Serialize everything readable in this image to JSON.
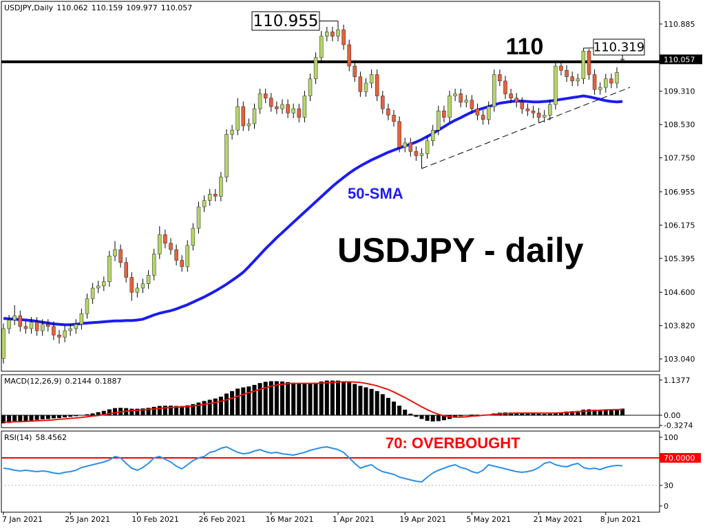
{
  "chart_data": [
    {
      "type": "candlestick",
      "title": "USDJPY,Daily",
      "annotation": "USDJPY - daily",
      "up_color": "#b5d56a",
      "down_color": "#e8603c",
      "categories": [
        "7 Jan 2021",
        null,
        null,
        null,
        null,
        null,
        null,
        null,
        null,
        null,
        null,
        null,
        "25 Jan 2021",
        null,
        null,
        null,
        null,
        null,
        null,
        null,
        null,
        null,
        null,
        null,
        "10 Feb 2021",
        null,
        null,
        null,
        null,
        null,
        null,
        null,
        null,
        null,
        null,
        null,
        "26 Feb 2021",
        null,
        null,
        null,
        null,
        null,
        null,
        null,
        null,
        null,
        null,
        null,
        "16 Mar 2021",
        null,
        null,
        null,
        null,
        null,
        null,
        null,
        null,
        null,
        null,
        null,
        "1 Apr 2021",
        null,
        null,
        null,
        null,
        null,
        null,
        null,
        null,
        null,
        null,
        null,
        "19 Apr 2021",
        null,
        null,
        null,
        null,
        null,
        null,
        null,
        null,
        null,
        null,
        null,
        "5 May 2021",
        null,
        null,
        null,
        null,
        null,
        null,
        null,
        null,
        null,
        null,
        null,
        "21 May 2021",
        null,
        null,
        null,
        null,
        null,
        null,
        null,
        null,
        null,
        null,
        null,
        "8 Jun 2021",
        null,
        null,
        null
      ],
      "open": [
        103.05,
        103.75,
        103.95,
        104.05,
        103.8,
        103.75,
        103.9,
        103.7,
        103.85,
        103.8,
        103.6,
        103.55,
        103.7,
        103.75,
        103.85,
        104.1,
        104.45,
        104.7,
        104.75,
        104.85,
        105.45,
        105.6,
        105.3,
        104.95,
        104.6,
        104.7,
        104.8,
        105.0,
        105.5,
        105.95,
        105.75,
        105.6,
        105.35,
        105.2,
        105.7,
        106.1,
        106.6,
        106.75,
        106.9,
        106.85,
        107.3,
        108.3,
        108.4,
        108.95,
        108.5,
        108.55,
        108.9,
        109.25,
        109.15,
        108.95,
        108.9,
        109.0,
        108.8,
        108.9,
        108.7,
        109.2,
        109.6,
        110.1,
        110.6,
        110.7,
        110.6,
        110.75,
        110.4,
        109.9,
        109.65,
        109.3,
        109.5,
        109.7,
        109.2,
        108.9,
        108.75,
        108.6,
        108.0,
        108.1,
        107.9,
        107.8,
        107.85,
        108.15,
        108.4,
        108.85,
        108.7,
        109.2,
        109.25,
        109.05,
        109.1,
        108.9,
        108.75,
        108.65,
        108.95,
        109.7,
        109.55,
        109.25,
        109.15,
        109.05,
        108.9,
        108.85,
        108.8,
        108.7,
        108.75,
        109.0,
        109.9,
        109.8,
        109.65,
        109.55,
        109.6,
        110.25,
        109.7,
        109.35,
        109.4,
        109.6,
        109.5,
        110.062
      ],
      "high": [
        103.87,
        104.07,
        104.3,
        104.17,
        103.92,
        104.02,
        104.02,
        103.97,
        103.97,
        103.92,
        103.72,
        103.82,
        103.87,
        103.97,
        104.22,
        104.57,
        104.82,
        104.87,
        104.97,
        105.57,
        105.8,
        105.72,
        105.42,
        105.07,
        104.82,
        104.92,
        105.12,
        105.62,
        106.15,
        106.07,
        105.87,
        105.72,
        105.47,
        105.82,
        106.22,
        106.72,
        106.87,
        107.02,
        107.02,
        107.42,
        108.42,
        108.52,
        109.15,
        109.07,
        108.67,
        109.02,
        109.37,
        109.37,
        109.27,
        109.07,
        109.12,
        109.12,
        109.02,
        109.02,
        109.32,
        109.72,
        110.22,
        110.72,
        110.82,
        110.82,
        110.955,
        110.87,
        110.52,
        110.02,
        109.77,
        109.62,
        109.82,
        109.82,
        109.32,
        109.02,
        108.87,
        108.72,
        108.22,
        108.22,
        108.02,
        107.97,
        108.27,
        108.52,
        108.97,
        108.97,
        109.32,
        109.37,
        109.37,
        109.22,
        109.22,
        109.02,
        108.87,
        109.07,
        109.82,
        109.82,
        109.67,
        109.37,
        109.27,
        109.17,
        109.02,
        108.97,
        108.92,
        108.87,
        109.12,
        110.02,
        110.02,
        109.92,
        109.77,
        109.72,
        110.319,
        110.3,
        109.82,
        109.52,
        109.72,
        109.72,
        109.87,
        110.159
      ],
      "low": [
        102.93,
        103.63,
        103.83,
        103.68,
        103.63,
        103.63,
        103.58,
        103.58,
        103.68,
        103.48,
        103.4,
        103.43,
        103.58,
        103.63,
        103.73,
        103.98,
        104.33,
        104.58,
        104.63,
        104.73,
        105.33,
        105.18,
        104.83,
        104.4,
        104.48,
        104.58,
        104.68,
        104.88,
        105.38,
        105.63,
        105.48,
        105.23,
        105.08,
        105.08,
        105.58,
        105.98,
        106.48,
        106.63,
        106.73,
        106.73,
        107.18,
        108.18,
        108.28,
        108.38,
        108.38,
        108.43,
        108.78,
        109.03,
        108.83,
        108.78,
        108.78,
        108.68,
        108.68,
        108.58,
        108.58,
        109.08,
        109.48,
        109.98,
        110.48,
        110.48,
        110.48,
        110.28,
        109.78,
        109.53,
        109.18,
        109.18,
        109.38,
        109.08,
        108.78,
        108.63,
        108.48,
        107.88,
        107.88,
        107.78,
        107.68,
        107.5,
        107.73,
        108.03,
        108.28,
        108.58,
        108.58,
        109.08,
        108.93,
        108.93,
        108.78,
        108.63,
        108.53,
        108.53,
        108.83,
        109.43,
        109.13,
        109.03,
        108.93,
        108.78,
        108.73,
        108.68,
        108.58,
        108.58,
        108.63,
        108.88,
        109.68,
        109.53,
        109.43,
        109.43,
        109.48,
        109.58,
        109.23,
        109.23,
        109.28,
        109.38,
        109.38,
        109.977
      ],
      "close": [
        103.75,
        103.95,
        104.05,
        103.8,
        103.75,
        103.9,
        103.7,
        103.85,
        103.8,
        103.6,
        103.55,
        103.7,
        103.75,
        103.85,
        104.1,
        104.45,
        104.7,
        104.75,
        104.85,
        105.45,
        105.6,
        105.3,
        104.95,
        104.6,
        104.7,
        104.8,
        105.0,
        105.5,
        105.95,
        105.75,
        105.6,
        105.35,
        105.2,
        105.7,
        106.1,
        106.6,
        106.75,
        106.9,
        106.85,
        107.3,
        108.3,
        108.4,
        108.95,
        108.5,
        108.55,
        108.9,
        109.25,
        109.15,
        108.95,
        108.9,
        109.0,
        108.8,
        108.9,
        108.7,
        109.2,
        109.6,
        110.1,
        110.6,
        110.7,
        110.6,
        110.75,
        110.4,
        109.9,
        109.65,
        109.3,
        109.5,
        109.7,
        109.2,
        108.9,
        108.75,
        108.6,
        108.0,
        108.1,
        107.9,
        107.8,
        107.85,
        108.15,
        108.4,
        108.85,
        108.7,
        109.2,
        109.25,
        109.05,
        109.1,
        108.9,
        108.75,
        108.65,
        108.95,
        109.7,
        109.55,
        109.25,
        109.15,
        109.05,
        108.9,
        108.85,
        108.8,
        108.7,
        108.75,
        109.0,
        109.9,
        109.8,
        109.65,
        109.55,
        109.6,
        110.25,
        109.7,
        109.35,
        109.4,
        109.6,
        109.5,
        109.75,
        110.057
      ],
      "series": [
        {
          "name": "50-SMA",
          "color": "#1c1cf0",
          "values": [
            103.99,
            103.98,
            103.97,
            103.96,
            103.95,
            103.94,
            103.92,
            103.9,
            103.88,
            103.86,
            103.85,
            103.84,
            103.84,
            103.85,
            103.87,
            103.88,
            103.89,
            103.9,
            103.91,
            103.92,
            103.93,
            103.93,
            103.94,
            103.94,
            103.95,
            103.97,
            104.02,
            104.07,
            104.11,
            104.14,
            104.17,
            104.21,
            104.26,
            104.31,
            104.37,
            104.43,
            104.49,
            104.56,
            104.63,
            104.71,
            104.79,
            104.88,
            104.97,
            105.07,
            105.2,
            105.34,
            105.48,
            105.62,
            105.75,
            105.88,
            106.0,
            106.12,
            106.24,
            106.36,
            106.48,
            106.6,
            106.72,
            106.84,
            106.96,
            107.08,
            107.19,
            107.29,
            107.39,
            107.48,
            107.56,
            107.63,
            107.7,
            107.76,
            107.82,
            107.88,
            107.93,
            107.98,
            108.03,
            108.07,
            108.12,
            108.18,
            108.25,
            108.32,
            108.4,
            108.48,
            108.56,
            108.63,
            108.69,
            108.76,
            108.82,
            108.87,
            108.91,
            108.95,
            108.99,
            109.03,
            109.05,
            109.07,
            109.08,
            109.08,
            109.07,
            109.06,
            109.06,
            109.07,
            109.08,
            109.1,
            109.12,
            109.14,
            109.16,
            109.18,
            109.2,
            109.18,
            109.15,
            109.12,
            109.09,
            109.07,
            109.06,
            109.07
          ]
        }
      ],
      "level": 110,
      "trendline": {
        "from": 107.5,
        "to": 109.4
      },
      "ylim": [
        102.751,
        111.415
      ],
      "yticks": [
        110.885,
        {
          "value": 109.31,
          "label": "109.310"
        },
        {
          "value": 108.53,
          "label": "108.530"
        },
        {
          "value": 107.75,
          "label": "107.750"
        },
        106.955,
        106.175,
        105.395,
        {
          "value": 104.6,
          "label": "104.600"
        },
        {
          "value": 103.82,
          "label": "103.820"
        },
        {
          "value": 103.04,
          "label": "103.040"
        }
      ]
    },
    {
      "type": "macd",
      "title": "MACD(12,26,9)",
      "series": [
        {
          "color": "#000000",
          "values": [
            -0.26,
            -0.25,
            -0.23,
            -0.21,
            -0.19,
            -0.17,
            -0.15,
            -0.13,
            -0.12,
            -0.1,
            -0.09,
            -0.07,
            -0.05,
            -0.03,
            0.0,
            0.03,
            0.06,
            0.1,
            0.14,
            0.19,
            0.23,
            0.24,
            0.23,
            0.21,
            0.21,
            0.22,
            0.24,
            0.27,
            0.3,
            0.31,
            0.31,
            0.3,
            0.3,
            0.32,
            0.36,
            0.41,
            0.46,
            0.5,
            0.54,
            0.6,
            0.7,
            0.78,
            0.86,
            0.9,
            0.93,
            0.98,
            1.04,
            1.08,
            1.1,
            1.1,
            1.09,
            1.07,
            1.05,
            1.02,
            1.01,
            1.02,
            1.05,
            1.09,
            1.12,
            1.12,
            1.12,
            1.1,
            1.06,
            1.01,
            0.95,
            0.9,
            0.85,
            0.78,
            0.68,
            0.56,
            0.44,
            0.31,
            0.18,
            0.05,
            -0.05,
            -0.12,
            -0.18,
            -0.2,
            -0.19,
            -0.16,
            -0.12,
            -0.07,
            -0.03,
            0.0,
            0.02,
            0.02,
            0.01,
            0.02,
            0.06,
            0.08,
            0.09,
            0.09,
            0.09,
            0.08,
            0.07,
            0.06,
            0.05,
            0.04,
            0.05,
            0.08,
            0.1,
            0.12,
            0.13,
            0.14,
            0.18,
            0.19,
            0.18,
            0.18,
            0.19,
            0.19,
            0.2,
            0.2144
          ]
        },
        {
          "color": "#e8150c",
          "values": [
            -0.22,
            -0.22,
            -0.21,
            -0.21,
            -0.2,
            -0.19,
            -0.18,
            -0.17,
            -0.16,
            -0.15,
            -0.13,
            -0.12,
            -0.1,
            -0.09,
            -0.07,
            -0.05,
            -0.03,
            -0.01,
            0.02,
            0.05,
            0.08,
            0.11,
            0.13,
            0.15,
            0.16,
            0.17,
            0.19,
            0.2,
            0.22,
            0.24,
            0.25,
            0.26,
            0.27,
            0.28,
            0.3,
            0.32,
            0.35,
            0.38,
            0.41,
            0.45,
            0.5,
            0.55,
            0.61,
            0.67,
            0.73,
            0.78,
            0.84,
            0.89,
            0.94,
            0.98,
            1.0,
            1.02,
            1.03,
            1.03,
            1.03,
            1.03,
            1.03,
            1.04,
            1.05,
            1.06,
            1.07,
            1.08,
            1.08,
            1.07,
            1.06,
            1.03,
            0.99,
            0.95,
            0.89,
            0.83,
            0.75,
            0.66,
            0.57,
            0.47,
            0.37,
            0.27,
            0.18,
            0.1,
            0.03,
            -0.02,
            -0.05,
            -0.06,
            -0.06,
            -0.05,
            -0.03,
            -0.02,
            0.0,
            0.01,
            0.03,
            0.04,
            0.05,
            0.06,
            0.07,
            0.07,
            0.07,
            0.07,
            0.07,
            0.07,
            0.07,
            0.07,
            0.08,
            0.09,
            0.1,
            0.11,
            0.13,
            0.14,
            0.15,
            0.16,
            0.17,
            0.18,
            0.18,
            0.1887
          ]
        }
      ],
      "ylim": [
        -0.4,
        1.31
      ],
      "yticks": [
        1.1377,
        {
          "value": 0,
          "label": "0.00"
        },
        -0.3274
      ]
    },
    {
      "type": "rsi",
      "title": "RSI(14)",
      "annotation": "70: OVERBOUGHT",
      "annotation_color": "#ff0000",
      "series": [
        {
          "color": "#2a8fe8",
          "values": [
            55,
            54,
            52,
            51,
            52,
            51,
            50,
            51,
            50,
            48,
            47,
            49,
            50,
            52,
            56,
            58,
            60,
            62,
            64,
            67,
            72,
            70,
            62,
            55,
            52,
            56,
            62,
            70,
            72,
            68,
            64,
            58,
            54,
            60,
            66,
            70,
            72,
            78,
            80,
            84,
            86,
            82,
            78,
            76,
            77,
            80,
            82,
            79,
            77,
            78,
            76,
            75,
            74,
            76,
            78,
            81,
            83,
            85,
            86,
            84,
            82,
            78,
            70,
            62,
            55,
            58,
            60,
            54,
            50,
            48,
            46,
            42,
            40,
            38,
            36,
            35,
            42,
            48,
            52,
            55,
            58,
            60,
            56,
            54,
            50,
            48,
            52,
            60,
            58,
            56,
            54,
            52,
            50,
            49,
            50,
            52,
            56,
            62,
            64,
            60,
            58,
            57,
            60,
            62,
            56,
            54,
            55,
            53,
            56,
            58,
            59,
            58.4562
          ]
        }
      ],
      "levels": [
        {
          "value": 70,
          "color": "#ff0000",
          "boxed": true
        },
        {
          "value": 30,
          "color": "#b0b0b0",
          "dashed": true
        }
      ],
      "ylim": [
        -9,
        109
      ],
      "yticks": [
        100,
        {
          "value": 70,
          "label": "70.0000"
        },
        30,
        0
      ]
    }
  ]
}
